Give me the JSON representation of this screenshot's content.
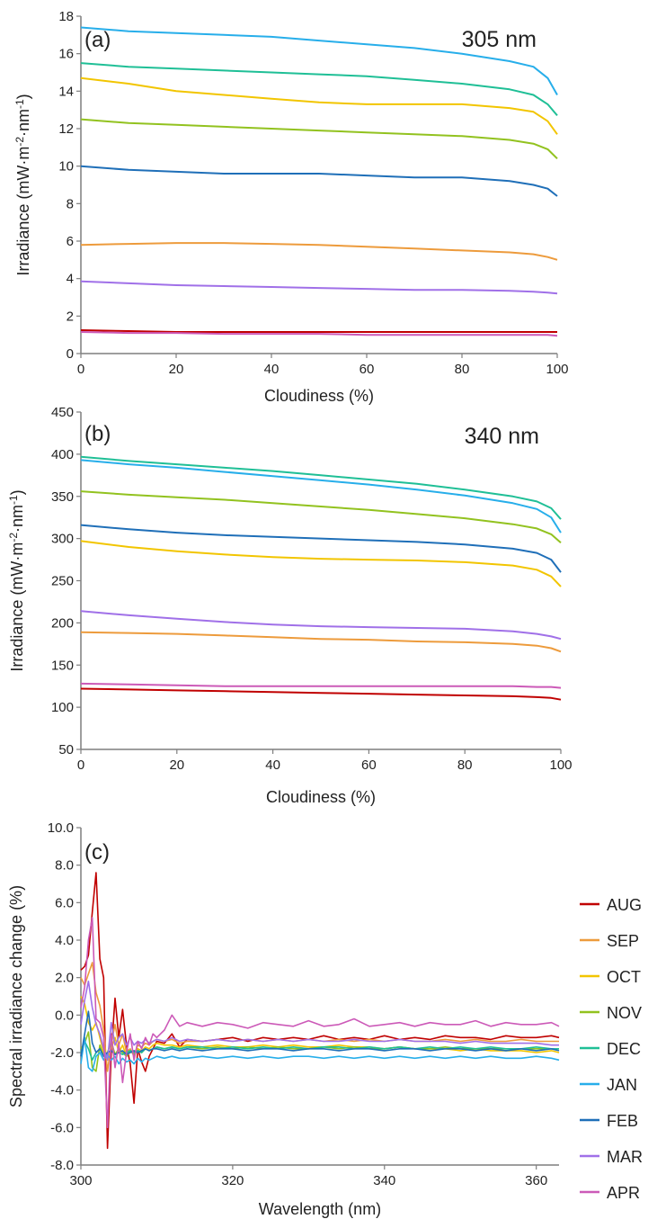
{
  "months": [
    "AUG",
    "SEP",
    "OCT",
    "NOV",
    "DEC",
    "JAN",
    "FEB",
    "MAR",
    "APR"
  ],
  "colors": {
    "AUG": "#c00000",
    "SEP": "#ed9b3c",
    "OCT": "#f2c500",
    "NOV": "#92c21f",
    "DEC": "#1fbf96",
    "JAN": "#27aeea",
    "FEB": "#1f6fb8",
    "MAR": "#a070e8",
    "APR": "#cc5ab8"
  },
  "chart_data": [
    {
      "type": "line",
      "panel_label": "(a)",
      "wavelength_label": "305 nm",
      "xlabel": "Cloudiness (%)",
      "ylabel_main": "Irradiance (mW·m",
      "ylabel_sup1": "-2",
      "ylabel_mid": "·nm",
      "ylabel_sup2": "-1",
      "ylabel_end": ")",
      "xlim": [
        0,
        100
      ],
      "ylim": [
        0,
        18
      ],
      "xticks": [
        0,
        20,
        40,
        60,
        80,
        100
      ],
      "yticks": [
        0,
        2,
        4,
        6,
        8,
        10,
        12,
        14,
        16,
        18
      ],
      "x": [
        0,
        10,
        20,
        30,
        40,
        50,
        60,
        70,
        80,
        90,
        95,
        98,
        100
      ],
      "series": [
        {
          "name": "JAN",
          "values": [
            17.4,
            17.2,
            17.1,
            17.0,
            16.9,
            16.7,
            16.5,
            16.3,
            16.0,
            15.6,
            15.3,
            14.7,
            13.8
          ]
        },
        {
          "name": "DEC",
          "values": [
            15.5,
            15.3,
            15.2,
            15.1,
            15.0,
            14.9,
            14.8,
            14.6,
            14.4,
            14.1,
            13.8,
            13.3,
            12.7
          ]
        },
        {
          "name": "OCT",
          "values": [
            14.7,
            14.4,
            14.0,
            13.8,
            13.6,
            13.4,
            13.3,
            13.3,
            13.3,
            13.1,
            12.9,
            12.4,
            11.7
          ]
        },
        {
          "name": "NOV",
          "values": [
            12.5,
            12.3,
            12.2,
            12.1,
            12.0,
            11.9,
            11.8,
            11.7,
            11.6,
            11.4,
            11.2,
            10.9,
            10.4
          ]
        },
        {
          "name": "FEB",
          "values": [
            10.0,
            9.8,
            9.7,
            9.6,
            9.6,
            9.6,
            9.5,
            9.4,
            9.4,
            9.2,
            9.0,
            8.8,
            8.4
          ]
        },
        {
          "name": "SEP",
          "values": [
            5.8,
            5.85,
            5.9,
            5.9,
            5.85,
            5.8,
            5.7,
            5.6,
            5.5,
            5.4,
            5.3,
            5.15,
            5.0
          ]
        },
        {
          "name": "MAR",
          "values": [
            3.85,
            3.75,
            3.65,
            3.6,
            3.55,
            3.5,
            3.45,
            3.4,
            3.4,
            3.35,
            3.3,
            3.25,
            3.2
          ]
        },
        {
          "name": "AUG",
          "values": [
            1.25,
            1.2,
            1.15,
            1.15,
            1.15,
            1.15,
            1.15,
            1.15,
            1.15,
            1.15,
            1.15,
            1.15,
            1.15
          ]
        },
        {
          "name": "APR",
          "values": [
            1.15,
            1.1,
            1.1,
            1.05,
            1.05,
            1.05,
            1.0,
            1.0,
            1.0,
            1.0,
            1.0,
            1.0,
            0.95
          ]
        }
      ]
    },
    {
      "type": "line",
      "panel_label": "(b)",
      "wavelength_label": "340 nm",
      "xlabel": "Cloudiness (%)",
      "ylabel_main": "Irradiance (mW·m",
      "ylabel_sup1": "-2",
      "ylabel_mid": "·nm",
      "ylabel_sup2": "-1",
      "ylabel_end": ")",
      "xlim": [
        0,
        100
      ],
      "ylim": [
        50,
        450
      ],
      "xticks": [
        0,
        20,
        40,
        60,
        80,
        100
      ],
      "yticks": [
        50,
        100,
        150,
        200,
        250,
        300,
        350,
        400,
        450
      ],
      "x": [
        0,
        10,
        20,
        30,
        40,
        50,
        60,
        70,
        80,
        90,
        95,
        98,
        100
      ],
      "series": [
        {
          "name": "DEC",
          "values": [
            397,
            392,
            388,
            384,
            380,
            375,
            370,
            365,
            358,
            350,
            344,
            336,
            323
          ]
        },
        {
          "name": "JAN",
          "values": [
            393,
            388,
            384,
            379,
            374,
            369,
            364,
            358,
            351,
            342,
            335,
            325,
            307
          ]
        },
        {
          "name": "NOV",
          "values": [
            356,
            352,
            349,
            346,
            342,
            338,
            334,
            329,
            324,
            317,
            312,
            305,
            295
          ]
        },
        {
          "name": "FEB",
          "values": [
            316,
            311,
            307,
            304,
            302,
            300,
            298,
            296,
            293,
            288,
            283,
            275,
            260
          ]
        },
        {
          "name": "OCT",
          "values": [
            297,
            290,
            285,
            281,
            278,
            276,
            275,
            274,
            272,
            268,
            263,
            255,
            243
          ]
        },
        {
          "name": "MAR",
          "values": [
            214,
            209,
            205,
            201,
            198,
            196,
            195,
            194,
            193,
            190,
            187,
            184,
            181
          ]
        },
        {
          "name": "SEP",
          "values": [
            189,
            188,
            187,
            185,
            183,
            181,
            180,
            178,
            177,
            175,
            173,
            170,
            166
          ]
        },
        {
          "name": "APR",
          "values": [
            128,
            127,
            126,
            125,
            125,
            125,
            125,
            125,
            125,
            125,
            124,
            124,
            123
          ]
        },
        {
          "name": "AUG",
          "values": [
            122,
            121,
            120,
            119,
            118,
            117,
            116,
            115,
            114,
            113,
            112,
            111,
            109
          ]
        }
      ]
    },
    {
      "type": "line",
      "panel_label": "(c)",
      "xlabel": "Wavelength (nm)",
      "ylabel": "Spectral irradiance change (%)",
      "xlim": [
        300,
        363
      ],
      "ylim": [
        -8,
        10
      ],
      "xticks": [
        300,
        320,
        340,
        360
      ],
      "yticks": [
        -8.0,
        -6.0,
        -4.0,
        -2.0,
        0.0,
        2.0,
        4.0,
        6.0,
        8.0,
        10.0
      ],
      "ytick_labels": [
        "-8.0",
        "-6.0",
        "-4.0",
        "-2.0",
        "0.0",
        "2.0",
        "4.0",
        "6.0",
        "8.0",
        "10.0"
      ],
      "x": [
        300,
        300.5,
        301,
        301.5,
        302,
        302.5,
        303,
        303.5,
        304,
        304.5,
        305,
        305.5,
        306,
        306.5,
        307,
        307.5,
        308,
        308.5,
        309,
        309.5,
        310,
        311,
        312,
        313,
        314,
        316,
        318,
        320,
        322,
        324,
        326,
        328,
        330,
        332,
        334,
        336,
        338,
        340,
        342,
        344,
        346,
        348,
        350,
        352,
        354,
        356,
        358,
        360,
        362,
        363
      ],
      "series": [
        {
          "name": "AUG",
          "values": [
            2.4,
            2.6,
            3.2,
            5.5,
            7.6,
            3.0,
            2.0,
            -7.1,
            -2.0,
            0.9,
            -1.2,
            0.3,
            -1.6,
            -2.6,
            -4.7,
            -1.8,
            -2.5,
            -3.0,
            -2.2,
            -1.8,
            -1.4,
            -1.5,
            -1.0,
            -1.7,
            -1.3,
            -1.4,
            -1.3,
            -1.2,
            -1.4,
            -1.2,
            -1.3,
            -1.2,
            -1.3,
            -1.1,
            -1.3,
            -1.2,
            -1.3,
            -1.1,
            -1.3,
            -1.2,
            -1.3,
            -1.1,
            -1.2,
            -1.2,
            -1.3,
            -1.1,
            -1.2,
            -1.2,
            -1.1,
            -1.2
          ]
        },
        {
          "name": "SEP",
          "values": [
            2.0,
            1.6,
            2.2,
            2.8,
            1.2,
            0.5,
            -0.8,
            -3.0,
            -1.5,
            -0.5,
            -1.6,
            -1.0,
            -2.0,
            -1.8,
            -2.2,
            -1.6,
            -1.7,
            -1.5,
            -1.6,
            -1.4,
            -1.3,
            -1.4,
            -1.3,
            -1.5,
            -1.4,
            -1.4,
            -1.3,
            -1.4,
            -1.3,
            -1.4,
            -1.3,
            -1.4,
            -1.3,
            -1.4,
            -1.3,
            -1.4,
            -1.3,
            -1.4,
            -1.3,
            -1.4,
            -1.4,
            -1.3,
            -1.4,
            -1.3,
            -1.4,
            -1.4,
            -1.3,
            -1.4,
            -1.4,
            -1.4
          ]
        },
        {
          "name": "OCT",
          "values": [
            1.0,
            0.6,
            -0.4,
            -0.8,
            -0.4,
            -1.2,
            -2.0,
            -2.4,
            -1.8,
            -1.2,
            -2.0,
            -1.6,
            -2.2,
            -1.9,
            -2.0,
            -1.8,
            -1.9,
            -1.7,
            -1.8,
            -1.6,
            -1.5,
            -1.6,
            -1.6,
            -1.7,
            -1.6,
            -1.7,
            -1.6,
            -1.7,
            -1.7,
            -1.6,
            -1.7,
            -1.6,
            -1.7,
            -1.7,
            -1.6,
            -1.7,
            -1.7,
            -1.8,
            -1.7,
            -1.8,
            -1.8,
            -1.8,
            -1.9,
            -1.8,
            -1.9,
            -1.9,
            -1.9,
            -2.0,
            -1.9,
            -2.0
          ]
        },
        {
          "name": "NOV",
          "values": [
            -1.8,
            -1.5,
            -0.9,
            -2.8,
            -3.0,
            -1.6,
            -2.2,
            -2.0,
            -1.4,
            -2.1,
            -1.8,
            -2.0,
            -2.2,
            -1.9,
            -2.1,
            -1.9,
            -2.0,
            -1.8,
            -1.9,
            -1.8,
            -1.7,
            -1.8,
            -1.7,
            -1.8,
            -1.7,
            -1.8,
            -1.7,
            -1.8,
            -1.7,
            -1.8,
            -1.7,
            -1.8,
            -1.8,
            -1.7,
            -1.8,
            -1.7,
            -1.8,
            -1.8,
            -1.7,
            -1.8,
            -1.8,
            -1.7,
            -1.8,
            -1.8,
            -1.8,
            -1.8,
            -1.8,
            -1.8,
            -1.8,
            -1.8
          ]
        },
        {
          "name": "DEC",
          "values": [
            -2.0,
            -1.4,
            -1.8,
            -2.4,
            -2.0,
            -1.8,
            -2.2,
            -2.0,
            -1.9,
            -2.1,
            -2.0,
            -2.1,
            -2.0,
            -1.9,
            -2.0,
            -1.9,
            -2.0,
            -1.8,
            -1.9,
            -1.8,
            -1.7,
            -1.8,
            -1.7,
            -1.8,
            -1.7,
            -1.7,
            -1.8,
            -1.7,
            -1.8,
            -1.7,
            -1.8,
            -1.7,
            -1.8,
            -1.7,
            -1.7,
            -1.8,
            -1.7,
            -1.8,
            -1.7,
            -1.8,
            -1.7,
            -1.8,
            -1.7,
            -1.8,
            -1.7,
            -1.8,
            -1.8,
            -1.7,
            -1.8,
            -1.8
          ]
        },
        {
          "name": "JAN",
          "values": [
            -2.6,
            -1.2,
            -2.8,
            -3.0,
            -2.2,
            -2.0,
            -2.4,
            -2.1,
            -2.4,
            -2.2,
            -2.6,
            -2.3,
            -2.5,
            -2.4,
            -2.6,
            -2.3,
            -2.5,
            -2.3,
            -2.4,
            -2.3,
            -2.2,
            -2.3,
            -2.2,
            -2.3,
            -2.3,
            -2.2,
            -2.3,
            -2.2,
            -2.3,
            -2.2,
            -2.3,
            -2.2,
            -2.2,
            -2.3,
            -2.2,
            -2.3,
            -2.2,
            -2.3,
            -2.2,
            -2.3,
            -2.2,
            -2.3,
            -2.2,
            -2.3,
            -2.2,
            -2.3,
            -2.3,
            -2.2,
            -2.3,
            -2.4
          ]
        },
        {
          "name": "FEB",
          "values": [
            -2.2,
            -1.0,
            0.2,
            -1.5,
            -2.0,
            -1.8,
            -2.2,
            -2.0,
            -1.9,
            -2.1,
            -2.0,
            -1.9,
            -2.1,
            -2.0,
            -1.9,
            -2.0,
            -1.9,
            -1.8,
            -1.9,
            -1.8,
            -1.8,
            -1.9,
            -1.8,
            -1.9,
            -1.8,
            -1.9,
            -1.8,
            -1.8,
            -1.9,
            -1.8,
            -1.8,
            -1.9,
            -1.8,
            -1.8,
            -1.9,
            -1.8,
            -1.8,
            -1.9,
            -1.8,
            -1.8,
            -1.9,
            -1.8,
            -1.8,
            -1.9,
            -1.8,
            -1.9,
            -1.8,
            -1.9,
            -1.8,
            -1.9
          ]
        },
        {
          "name": "MAR",
          "values": [
            -0.5,
            0.8,
            1.8,
            0.4,
            -0.5,
            -1.0,
            -1.8,
            -2.4,
            -0.4,
            -1.6,
            -1.2,
            -1.0,
            -1.6,
            -1.2,
            -1.6,
            -1.4,
            -1.5,
            -1.3,
            -1.5,
            -1.4,
            -1.3,
            -1.4,
            -1.2,
            -1.4,
            -1.3,
            -1.4,
            -1.3,
            -1.4,
            -1.3,
            -1.4,
            -1.3,
            -1.4,
            -1.3,
            -1.4,
            -1.4,
            -1.3,
            -1.4,
            -1.4,
            -1.3,
            -1.4,
            -1.4,
            -1.4,
            -1.5,
            -1.4,
            -1.5,
            -1.5,
            -1.5,
            -1.5,
            -1.6,
            -1.6
          ]
        },
        {
          "name": "APR",
          "values": [
            0.4,
            1.5,
            4.0,
            5.2,
            -0.2,
            -0.4,
            -1.2,
            -6.0,
            -1.0,
            -2.8,
            -1.5,
            -3.6,
            -2.0,
            -1.0,
            -2.4,
            -1.4,
            -1.8,
            -1.2,
            -1.6,
            -1.0,
            -1.2,
            -0.8,
            0.0,
            -0.6,
            -0.4,
            -0.6,
            -0.4,
            -0.5,
            -0.7,
            -0.4,
            -0.5,
            -0.6,
            -0.3,
            -0.6,
            -0.5,
            -0.2,
            -0.6,
            -0.5,
            -0.4,
            -0.6,
            -0.4,
            -0.5,
            -0.5,
            -0.3,
            -0.6,
            -0.4,
            -0.5,
            -0.5,
            -0.4,
            -0.6
          ]
        }
      ]
    }
  ]
}
